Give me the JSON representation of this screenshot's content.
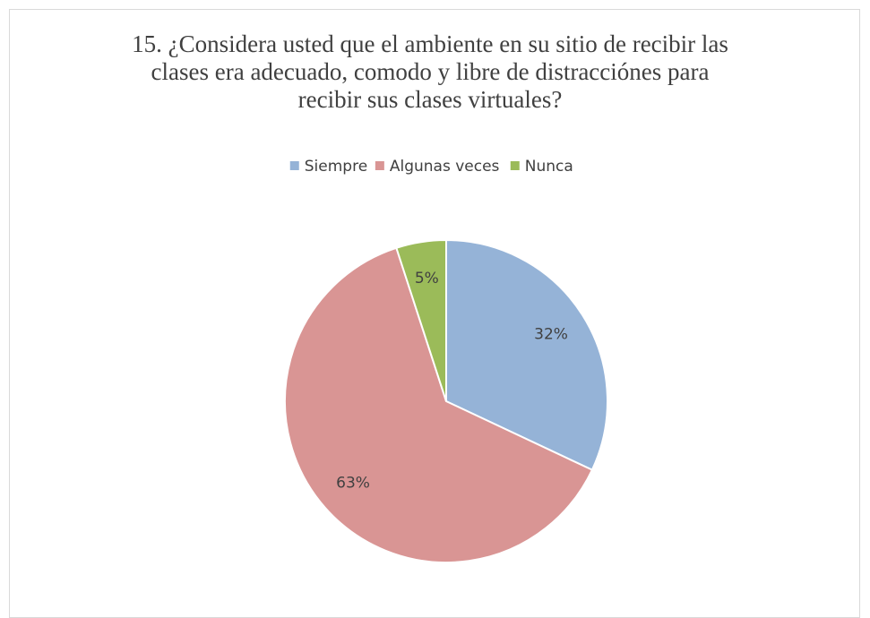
{
  "chart_data": {
    "type": "pie",
    "title": "15. ¿Considera usted que el ambiente en su sitio de recibir las clases era adecuado, comodo y libre de distracciónes para recibir sus clases virtuales?",
    "categories": [
      "Siempre",
      "Algunas veces",
      "Nunca"
    ],
    "values": [
      32,
      63,
      5
    ],
    "value_labels": [
      "32%",
      "63%",
      "5%"
    ],
    "colors": [
      "#95b3d7",
      "#d99594",
      "#9bbb59"
    ],
    "legend": "top"
  }
}
